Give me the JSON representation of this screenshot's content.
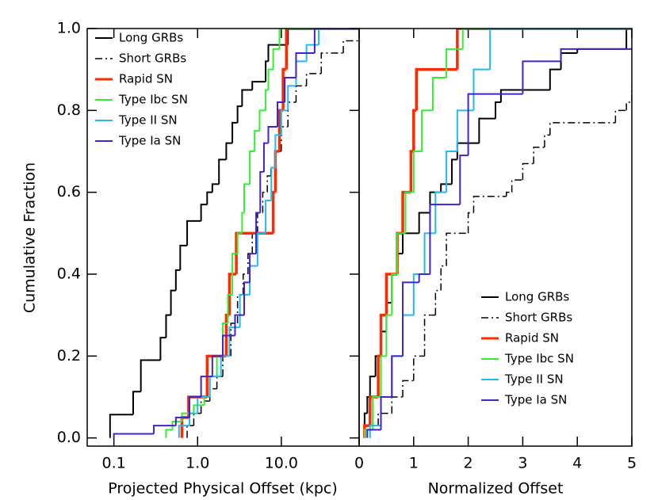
{
  "chart_data": [
    {
      "type": "step",
      "xlabel": "Projected Physical Offset (kpc)",
      "ylabel": "Cumulative Fraction",
      "xscale": "log",
      "xlim": [
        0.048,
        85
      ],
      "ylim": [
        -0.02,
        1.0
      ],
      "xticks": [
        0.1,
        {
          "value": 1,
          "label": "1.0"
        },
        {
          "value": 10,
          "label": "10.0"
        }
      ],
      "yticks": [
        {
          "value": 0,
          "label": "0.0"
        },
        0.2,
        0.4,
        0.6,
        0.8,
        {
          "value": 1,
          "label": "1.0"
        }
      ],
      "legend": "upper left",
      "series": [
        {
          "name": "Long GRBs",
          "color": "#000000",
          "dash": "solid",
          "width": 2,
          "x": [
            0.09,
            0.17,
            0.21,
            0.36,
            0.42,
            0.48,
            0.55,
            0.62,
            0.75,
            1.1,
            1.3,
            1.5,
            1.8,
            2.2,
            2.6,
            3.0,
            3.4,
            4.5,
            6.5,
            7.0,
            12
          ],
          "values": [
            0.057,
            0.113,
            0.19,
            0.245,
            0.3,
            0.36,
            0.41,
            0.47,
            0.53,
            0.57,
            0.6,
            0.62,
            0.68,
            0.72,
            0.77,
            0.81,
            0.85,
            0.87,
            0.92,
            0.96,
            1.0
          ]
        },
        {
          "name": "Short GRBs",
          "color": "#000000",
          "dash": "dashdot",
          "width": 1.5,
          "x": [
            0.75,
            0.9,
            1.1,
            1.4,
            1.7,
            2.0,
            2.5,
            3.0,
            3.5,
            4.0,
            4.5,
            5.2,
            6.0,
            6.8,
            7.5,
            8.5,
            10,
            12,
            15,
            20,
            30,
            55
          ],
          "values": [
            0.03,
            0.06,
            0.09,
            0.12,
            0.15,
            0.2,
            0.28,
            0.35,
            0.4,
            0.45,
            0.5,
            0.55,
            0.6,
            0.64,
            0.66,
            0.7,
            0.76,
            0.82,
            0.86,
            0.89,
            0.94,
            0.97
          ]
        },
        {
          "name": "Rapid SN",
          "color": "#ff2a00",
          "dash": "solid",
          "width": 3.5,
          "x": [
            0.65,
            0.78,
            1.3,
            2.2,
            2.4,
            2.9,
            8.0,
            8.5,
            9.5,
            10.5,
            11.5
          ],
          "values": [
            0.05,
            0.1,
            0.2,
            0.3,
            0.4,
            0.5,
            0.6,
            0.7,
            0.8,
            0.9,
            1.0
          ]
        },
        {
          "name": "Type Ibc SN",
          "color": "#33ee33",
          "dash": "solid",
          "width": 2,
          "x": [
            0.42,
            0.5,
            0.65,
            0.9,
            1.2,
            1.4,
            1.7,
            2.0,
            2.3,
            2.6,
            3.0,
            3.4,
            3.6,
            4.2,
            4.8,
            5.5,
            6.5,
            7.0,
            8.0,
            9.5
          ],
          "values": [
            0.02,
            0.04,
            0.06,
            0.08,
            0.1,
            0.15,
            0.2,
            0.28,
            0.35,
            0.45,
            0.5,
            0.55,
            0.62,
            0.7,
            0.75,
            0.8,
            0.85,
            0.9,
            0.95,
            1.0
          ]
        },
        {
          "name": "Type II SN",
          "color": "#22bbee",
          "dash": "solid",
          "width": 2,
          "x": [
            0.6,
            0.8,
            1.0,
            1.4,
            1.9,
            2.4,
            3.2,
            4.2,
            5.2,
            6.5,
            7.6,
            8.5,
            10,
            12,
            15,
            20,
            28
          ],
          "values": [
            0.03,
            0.06,
            0.1,
            0.15,
            0.2,
            0.27,
            0.35,
            0.42,
            0.5,
            0.58,
            0.66,
            0.74,
            0.8,
            0.86,
            0.92,
            0.96,
            1.0
          ]
        },
        {
          "name": "Type Ia SN",
          "color": "#4422cc",
          "dash": "solid",
          "width": 2,
          "x": [
            0.1,
            0.3,
            0.55,
            0.8,
            1.1,
            1.5,
            2.0,
            2.8,
            3.6,
            4.2,
            5.0,
            5.6,
            6.2,
            7.0,
            9.0,
            11,
            15,
            25
          ],
          "values": [
            0.01,
            0.03,
            0.05,
            0.1,
            0.15,
            0.2,
            0.25,
            0.3,
            0.38,
            0.45,
            0.55,
            0.65,
            0.72,
            0.76,
            0.82,
            0.88,
            0.94,
            1.0
          ]
        }
      ]
    },
    {
      "type": "step",
      "xlabel": "Normalized Offset",
      "xscale": "linear",
      "xlim": [
        0,
        5
      ],
      "ylim": [
        -0.02,
        1.0
      ],
      "xticks": [
        0,
        1,
        2,
        3,
        4,
        5
      ],
      "legend": "lower right",
      "series": [
        {
          "name": "Long GRBs",
          "color": "#000000",
          "dash": "solid",
          "width": 2,
          "x": [
            0.1,
            0.15,
            0.2,
            0.3,
            0.4,
            0.5,
            0.6,
            0.7,
            0.8,
            1.1,
            1.3,
            1.5,
            1.7,
            1.8,
            2.2,
            2.5,
            2.6,
            3.5,
            3.7,
            4.0,
            4.9
          ],
          "values": [
            0.06,
            0.1,
            0.15,
            0.2,
            0.26,
            0.33,
            0.4,
            0.45,
            0.5,
            0.55,
            0.6,
            0.62,
            0.68,
            0.72,
            0.78,
            0.82,
            0.85,
            0.9,
            0.94,
            0.95,
            1.0
          ]
        },
        {
          "name": "Short GRBs",
          "color": "#000000",
          "dash": "dashdot",
          "width": 1.5,
          "x": [
            0.2,
            0.35,
            0.6,
            0.8,
            1.0,
            1.2,
            1.4,
            1.5,
            1.6,
            2.0,
            2.1,
            2.7,
            2.8,
            3.0,
            3.2,
            3.4,
            3.5,
            4.7,
            4.9,
            5.0
          ],
          "values": [
            0.03,
            0.06,
            0.1,
            0.14,
            0.2,
            0.3,
            0.36,
            0.42,
            0.5,
            0.55,
            0.59,
            0.6,
            0.63,
            0.67,
            0.71,
            0.74,
            0.77,
            0.8,
            0.82,
            0.86
          ]
        },
        {
          "name": "Rapid SN",
          "color": "#ff2a00",
          "dash": "solid",
          "width": 3.5,
          "x": [
            0.1,
            0.2,
            0.35,
            0.4,
            0.5,
            0.7,
            0.8,
            0.95,
            1.0,
            1.05,
            1.8
          ],
          "values": [
            0.03,
            0.1,
            0.2,
            0.3,
            0.4,
            0.5,
            0.6,
            0.7,
            0.8,
            0.9,
            1.0
          ]
        },
        {
          "name": "Type Ibc SN",
          "color": "#33ee33",
          "dash": "solid",
          "width": 2,
          "x": [
            0.1,
            0.25,
            0.4,
            0.5,
            0.6,
            0.7,
            0.85,
            1.0,
            1.15,
            1.35,
            1.6,
            1.9
          ],
          "values": [
            0.02,
            0.1,
            0.2,
            0.3,
            0.4,
            0.5,
            0.6,
            0.7,
            0.8,
            0.88,
            0.95,
            1.0
          ]
        },
        {
          "name": "Type II SN",
          "color": "#22bbee",
          "dash": "solid",
          "width": 2,
          "x": [
            0.2,
            0.4,
            0.6,
            0.8,
            1.0,
            1.2,
            1.4,
            1.6,
            1.8,
            2.1,
            2.4
          ],
          "values": [
            0.03,
            0.1,
            0.2,
            0.3,
            0.4,
            0.5,
            0.6,
            0.7,
            0.8,
            0.9,
            1.0
          ]
        },
        {
          "name": "Type Ia SN",
          "color": "#4422cc",
          "dash": "solid",
          "width": 2,
          "x": [
            0.15,
            0.4,
            0.6,
            0.8,
            1.1,
            1.3,
            1.85,
            2.0,
            3.0,
            3.7
          ],
          "values": [
            0.02,
            0.1,
            0.2,
            0.38,
            0.4,
            0.57,
            0.69,
            0.84,
            0.92,
            0.95
          ]
        }
      ]
    }
  ]
}
